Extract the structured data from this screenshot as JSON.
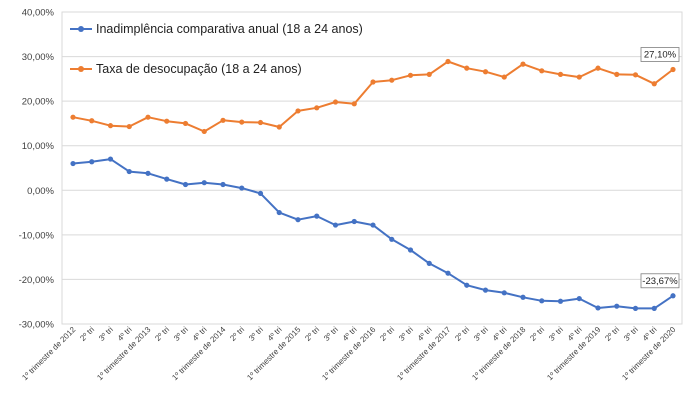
{
  "chart_data": {
    "type": "line",
    "categories": [
      "1º trimestre de 2012",
      "2º tri",
      "3º tri",
      "4º tri",
      "1º trimestre de 2013",
      "2º tri",
      "3º tri",
      "4º tri",
      "1º trimestre de 2014",
      "2º tri",
      "3º tri",
      "4º tri",
      "1º trimestre de 2015",
      "2º tri",
      "3º tri",
      "4º tri",
      "1º trimestre de 2016",
      "2º tri",
      "3º tri",
      "4º tri",
      "1º trimestre de 2017",
      "2º tri",
      "3º tri",
      "4º tri",
      "1º trimestre de 2018",
      "2º tri",
      "3º tri",
      "4º tri",
      "1º trimestre de 2019",
      "2º tri",
      "3º tri",
      "4º tri",
      "1º trimestre de 2020"
    ],
    "series": [
      {
        "name": "Inadimplência comparativa anual (18 a 24 anos)",
        "color": "#4472C4",
        "values": [
          6.0,
          6.4,
          7.0,
          4.2,
          3.8,
          2.5,
          1.3,
          1.7,
          1.3,
          0.5,
          -0.7,
          -5.0,
          -6.6,
          -5.8,
          -7.8,
          -7.0,
          -7.8,
          -11.0,
          -13.4,
          -16.4,
          -18.6,
          -21.3,
          -22.4,
          -23.0,
          -24.0,
          -24.8,
          -24.9,
          -24.3,
          -26.4,
          -26.0,
          -26.5,
          -26.5,
          -23.67
        ],
        "end_label": "-23,67%"
      },
      {
        "name": "Taxa de desocupação (18 a 24 anos)",
        "color": "#ED7D31",
        "values": [
          16.4,
          15.6,
          14.5,
          14.3,
          16.4,
          15.5,
          15.0,
          13.2,
          15.7,
          15.3,
          15.2,
          14.2,
          17.8,
          18.5,
          19.8,
          19.4,
          24.3,
          24.7,
          25.8,
          26.0,
          28.9,
          27.4,
          26.6,
          25.4,
          28.3,
          26.8,
          26.0,
          25.4,
          27.4,
          26.0,
          25.9,
          23.9,
          27.1
        ],
        "end_label": "27,10%"
      }
    ],
    "ylim": [
      -30,
      40
    ],
    "y_ticks": [
      "-30,00%",
      "-20,00%",
      "-10,00%",
      "0,00%",
      "10,00%",
      "20,00%",
      "30,00%",
      "40,00%"
    ],
    "grid": true,
    "legend_position": "top-left"
  }
}
